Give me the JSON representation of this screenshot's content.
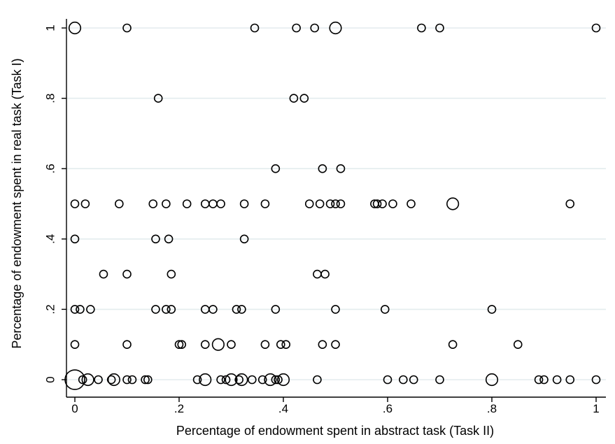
{
  "chart_data": {
    "type": "scatter",
    "title": "",
    "xlabel": "Percentage of endowment spent in abstract task (Task II)",
    "ylabel": "Percentage of endowment spent in real task (Task I)",
    "xlim": [
      0,
      1
    ],
    "ylim": [
      0,
      1
    ],
    "x_ticks": [
      "0",
      ".2",
      ".4",
      ".6",
      ".8",
      "1"
    ],
    "y_ticks": [
      "0",
      ".2",
      ".4",
      ".6",
      ".8",
      "1"
    ],
    "grid": "horizontal",
    "marker": "hollow circle, size proportional to frequency",
    "points": [
      {
        "x": 0.0,
        "y": 1.0,
        "w": 2
      },
      {
        "x": 0.1,
        "y": 1.0,
        "w": 1
      },
      {
        "x": 0.345,
        "y": 1.0,
        "w": 1
      },
      {
        "x": 0.425,
        "y": 1.0,
        "w": 1
      },
      {
        "x": 0.46,
        "y": 1.0,
        "w": 1
      },
      {
        "x": 0.5,
        "y": 1.0,
        "w": 2
      },
      {
        "x": 0.665,
        "y": 1.0,
        "w": 1
      },
      {
        "x": 0.7,
        "y": 1.0,
        "w": 1
      },
      {
        "x": 1.0,
        "y": 1.0,
        "w": 1
      },
      {
        "x": 0.16,
        "y": 0.8,
        "w": 1
      },
      {
        "x": 0.42,
        "y": 0.8,
        "w": 1
      },
      {
        "x": 0.44,
        "y": 0.8,
        "w": 1
      },
      {
        "x": 0.385,
        "y": 0.6,
        "w": 1
      },
      {
        "x": 0.475,
        "y": 0.6,
        "w": 1
      },
      {
        "x": 0.51,
        "y": 0.6,
        "w": 1
      },
      {
        "x": 0.0,
        "y": 0.5,
        "w": 1
      },
      {
        "x": 0.02,
        "y": 0.5,
        "w": 1
      },
      {
        "x": 0.085,
        "y": 0.5,
        "w": 1
      },
      {
        "x": 0.15,
        "y": 0.5,
        "w": 1
      },
      {
        "x": 0.175,
        "y": 0.5,
        "w": 1
      },
      {
        "x": 0.215,
        "y": 0.5,
        "w": 1
      },
      {
        "x": 0.25,
        "y": 0.5,
        "w": 1
      },
      {
        "x": 0.265,
        "y": 0.5,
        "w": 1
      },
      {
        "x": 0.28,
        "y": 0.5,
        "w": 1
      },
      {
        "x": 0.325,
        "y": 0.5,
        "w": 1
      },
      {
        "x": 0.365,
        "y": 0.5,
        "w": 1
      },
      {
        "x": 0.45,
        "y": 0.5,
        "w": 1
      },
      {
        "x": 0.47,
        "y": 0.5,
        "w": 1
      },
      {
        "x": 0.49,
        "y": 0.5,
        "w": 1
      },
      {
        "x": 0.5,
        "y": 0.5,
        "w": 1
      },
      {
        "x": 0.51,
        "y": 0.5,
        "w": 1
      },
      {
        "x": 0.575,
        "y": 0.5,
        "w": 1
      },
      {
        "x": 0.58,
        "y": 0.5,
        "w": 1
      },
      {
        "x": 0.59,
        "y": 0.5,
        "w": 1
      },
      {
        "x": 0.61,
        "y": 0.5,
        "w": 1
      },
      {
        "x": 0.645,
        "y": 0.5,
        "w": 1
      },
      {
        "x": 0.725,
        "y": 0.5,
        "w": 2
      },
      {
        "x": 0.95,
        "y": 0.5,
        "w": 1
      },
      {
        "x": 0.0,
        "y": 0.4,
        "w": 1
      },
      {
        "x": 0.155,
        "y": 0.4,
        "w": 1
      },
      {
        "x": 0.18,
        "y": 0.4,
        "w": 1
      },
      {
        "x": 0.325,
        "y": 0.4,
        "w": 1
      },
      {
        "x": 0.055,
        "y": 0.3,
        "w": 1
      },
      {
        "x": 0.1,
        "y": 0.3,
        "w": 1
      },
      {
        "x": 0.185,
        "y": 0.3,
        "w": 1
      },
      {
        "x": 0.465,
        "y": 0.3,
        "w": 1
      },
      {
        "x": 0.48,
        "y": 0.3,
        "w": 1
      },
      {
        "x": 0.0,
        "y": 0.2,
        "w": 1
      },
      {
        "x": 0.01,
        "y": 0.2,
        "w": 1
      },
      {
        "x": 0.03,
        "y": 0.2,
        "w": 1
      },
      {
        "x": 0.155,
        "y": 0.2,
        "w": 1
      },
      {
        "x": 0.175,
        "y": 0.2,
        "w": 1
      },
      {
        "x": 0.185,
        "y": 0.2,
        "w": 1
      },
      {
        "x": 0.25,
        "y": 0.2,
        "w": 1
      },
      {
        "x": 0.265,
        "y": 0.2,
        "w": 1
      },
      {
        "x": 0.31,
        "y": 0.2,
        "w": 1
      },
      {
        "x": 0.32,
        "y": 0.2,
        "w": 1
      },
      {
        "x": 0.385,
        "y": 0.2,
        "w": 1
      },
      {
        "x": 0.5,
        "y": 0.2,
        "w": 1
      },
      {
        "x": 0.595,
        "y": 0.2,
        "w": 1
      },
      {
        "x": 0.8,
        "y": 0.2,
        "w": 1
      },
      {
        "x": 0.0,
        "y": 0.1,
        "w": 1
      },
      {
        "x": 0.1,
        "y": 0.1,
        "w": 1
      },
      {
        "x": 0.2,
        "y": 0.1,
        "w": 1
      },
      {
        "x": 0.205,
        "y": 0.1,
        "w": 1
      },
      {
        "x": 0.25,
        "y": 0.1,
        "w": 1
      },
      {
        "x": 0.275,
        "y": 0.1,
        "w": 2
      },
      {
        "x": 0.3,
        "y": 0.1,
        "w": 1
      },
      {
        "x": 0.365,
        "y": 0.1,
        "w": 1
      },
      {
        "x": 0.395,
        "y": 0.1,
        "w": 1
      },
      {
        "x": 0.405,
        "y": 0.1,
        "w": 1
      },
      {
        "x": 0.475,
        "y": 0.1,
        "w": 1
      },
      {
        "x": 0.5,
        "y": 0.1,
        "w": 1
      },
      {
        "x": 0.725,
        "y": 0.1,
        "w": 1
      },
      {
        "x": 0.85,
        "y": 0.1,
        "w": 1
      },
      {
        "x": 0.0,
        "y": 0.0,
        "w": 6
      },
      {
        "x": 0.015,
        "y": 0.0,
        "w": 1
      },
      {
        "x": 0.025,
        "y": 0.0,
        "w": 2
      },
      {
        "x": 0.045,
        "y": 0.0,
        "w": 1
      },
      {
        "x": 0.07,
        "y": 0.0,
        "w": 1
      },
      {
        "x": 0.075,
        "y": 0.0,
        "w": 2
      },
      {
        "x": 0.1,
        "y": 0.0,
        "w": 1
      },
      {
        "x": 0.11,
        "y": 0.0,
        "w": 1
      },
      {
        "x": 0.135,
        "y": 0.0,
        "w": 1
      },
      {
        "x": 0.14,
        "y": 0.0,
        "w": 1
      },
      {
        "x": 0.235,
        "y": 0.0,
        "w": 1
      },
      {
        "x": 0.25,
        "y": 0.0,
        "w": 2
      },
      {
        "x": 0.28,
        "y": 0.0,
        "w": 1
      },
      {
        "x": 0.29,
        "y": 0.0,
        "w": 1
      },
      {
        "x": 0.3,
        "y": 0.0,
        "w": 2
      },
      {
        "x": 0.315,
        "y": 0.0,
        "w": 1
      },
      {
        "x": 0.32,
        "y": 0.0,
        "w": 2
      },
      {
        "x": 0.34,
        "y": 0.0,
        "w": 1
      },
      {
        "x": 0.36,
        "y": 0.0,
        "w": 1
      },
      {
        "x": 0.375,
        "y": 0.0,
        "w": 2
      },
      {
        "x": 0.385,
        "y": 0.0,
        "w": 1
      },
      {
        "x": 0.39,
        "y": 0.0,
        "w": 1
      },
      {
        "x": 0.4,
        "y": 0.0,
        "w": 2
      },
      {
        "x": 0.465,
        "y": 0.0,
        "w": 1
      },
      {
        "x": 0.6,
        "y": 0.0,
        "w": 1
      },
      {
        "x": 0.63,
        "y": 0.0,
        "w": 1
      },
      {
        "x": 0.65,
        "y": 0.0,
        "w": 1
      },
      {
        "x": 0.7,
        "y": 0.0,
        "w": 1
      },
      {
        "x": 0.8,
        "y": 0.0,
        "w": 2
      },
      {
        "x": 0.89,
        "y": 0.0,
        "w": 1
      },
      {
        "x": 0.9,
        "y": 0.0,
        "w": 1
      },
      {
        "x": 0.925,
        "y": 0.0,
        "w": 1
      },
      {
        "x": 0.95,
        "y": 0.0,
        "w": 1
      },
      {
        "x": 1.0,
        "y": 0.0,
        "w": 1
      }
    ],
    "colors": {
      "background": "#ffffff",
      "marker_stroke": "#000000",
      "gridline": "#e3ecee",
      "axis": "#000000"
    }
  }
}
